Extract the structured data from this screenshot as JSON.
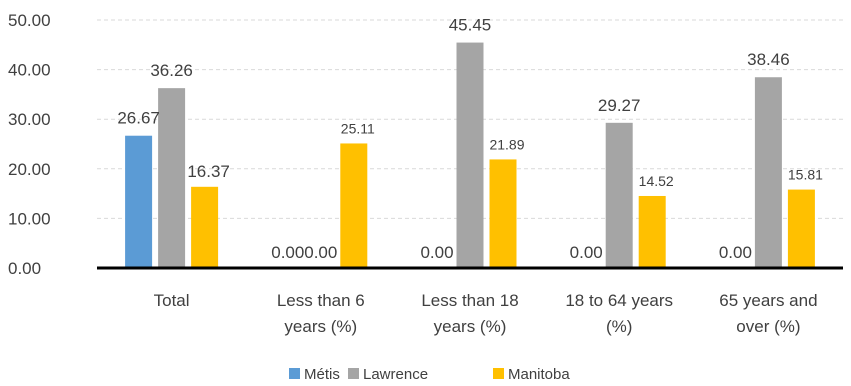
{
  "chart_data": {
    "type": "bar",
    "title": "",
    "xlabel": "",
    "ylabel": "",
    "ylim": [
      0,
      50
    ],
    "yticks": [
      "0.00",
      "10.00",
      "20.00",
      "30.00",
      "40.00",
      "50.00"
    ],
    "grid": "dashed horizontal",
    "legend_position": "bottom",
    "categories": [
      [
        "Total"
      ],
      [
        "Less than 6",
        "years (%)"
      ],
      [
        "Less than 18",
        "years (%)"
      ],
      [
        "18 to 64 years",
        "(%)"
      ],
      [
        "65 years and",
        "over (%)"
      ]
    ],
    "series": [
      {
        "name": "Métis",
        "color": "#5B9BD5",
        "values": [
          26.67,
          0.0,
          0.0,
          0.0,
          0.0
        ],
        "labels": [
          "26.67",
          "0.00",
          "0.00",
          "0.00",
          "0.00"
        ]
      },
      {
        "name": "Lawrence",
        "color": "#A5A5A5",
        "values": [
          36.26,
          0.0,
          45.45,
          29.27,
          38.46
        ],
        "labels": [
          "36.26",
          "0.00",
          "45.45",
          "29.27",
          "38.46"
        ]
      },
      {
        "name": "Manitoba",
        "color": "#FFC000",
        "values": [
          16.37,
          25.11,
          21.89,
          14.52,
          15.81
        ],
        "labels": [
          "16.37",
          "25.11",
          "21.89",
          "14.52",
          "15.81"
        ]
      }
    ]
  }
}
